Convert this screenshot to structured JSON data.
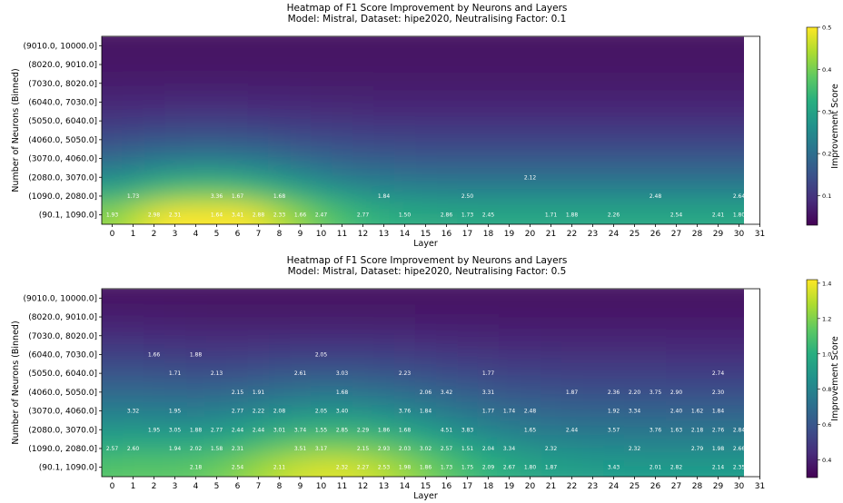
{
  "chart_data": [
    {
      "type": "heatmap",
      "title": "Heatmap of F1 Score Improvement by Neurons and Layers",
      "subtitle": "Model: Mistral, Dataset: hipe2020, Neutralising Factor: 0.1",
      "xlabel": "Layer",
      "ylabel": "Number of Neurons (Binned)",
      "colorbar_label": "Improvement Score",
      "colormap": "viridis",
      "x_ticks": [
        "0",
        "1",
        "2",
        "3",
        "4",
        "5",
        "6",
        "7",
        "8",
        "9",
        "10",
        "11",
        "12",
        "13",
        "14",
        "15",
        "16",
        "17",
        "18",
        "19",
        "20",
        "21",
        "22",
        "23",
        "24",
        "25",
        "26",
        "27",
        "28",
        "29",
        "30",
        "31"
      ],
      "y_bins": [
        "(9010.0, 10000.0]",
        "(8020.0, 9010.0]",
        "(7030.0, 8020.0]",
        "(6040.0, 7030.0]",
        "(5050.0, 6040.0]",
        "(4060.0, 5050.0]",
        "(3070.0, 4060.0]",
        "(2080.0, 3070.0]",
        "(1090.0, 2080.0]",
        "(90.1, 1090.0]"
      ],
      "colorbar_range": [
        0.03,
        0.5
      ],
      "colorbar_ticks": [
        "0.1",
        "0.2",
        "0.3",
        "0.4",
        "0.5"
      ],
      "cells": [
        {
          "bin": "(2080.0, 3070.0]",
          "layer": 20,
          "value": "2.12"
        },
        {
          "bin": "(1090.0, 2080.0]",
          "layer": 1,
          "value": "1.73"
        },
        {
          "bin": "(1090.0, 2080.0]",
          "layer": 5,
          "value": "3.36"
        },
        {
          "bin": "(1090.0, 2080.0]",
          "layer": 6,
          "value": "1.67"
        },
        {
          "bin": "(1090.0, 2080.0]",
          "layer": 8,
          "value": "1.68"
        },
        {
          "bin": "(1090.0, 2080.0]",
          "layer": 13,
          "value": "1.84"
        },
        {
          "bin": "(1090.0, 2080.0]",
          "layer": 17,
          "value": "2.50"
        },
        {
          "bin": "(1090.0, 2080.0]",
          "layer": 26,
          "value": "2.48"
        },
        {
          "bin": "(1090.0, 2080.0]",
          "layer": 30,
          "value": "2.64"
        },
        {
          "bin": "(90.1, 1090.0]",
          "layer": 0,
          "value": "1.93"
        },
        {
          "bin": "(90.1, 1090.0]",
          "layer": 2,
          "value": "2.98"
        },
        {
          "bin": "(90.1, 1090.0]",
          "layer": 3,
          "value": "2.31"
        },
        {
          "bin": "(90.1, 1090.0]",
          "layer": 5,
          "value": "1.64"
        },
        {
          "bin": "(90.1, 1090.0]",
          "layer": 6,
          "value": "3.41"
        },
        {
          "bin": "(90.1, 1090.0]",
          "layer": 7,
          "value": "2.88"
        },
        {
          "bin": "(90.1, 1090.0]",
          "layer": 8,
          "value": "2.33"
        },
        {
          "bin": "(90.1, 1090.0]",
          "layer": 9,
          "value": "1.66"
        },
        {
          "bin": "(90.1, 1090.0]",
          "layer": 10,
          "value": "2.47"
        },
        {
          "bin": "(90.1, 1090.0]",
          "layer": 12,
          "value": "2.77"
        },
        {
          "bin": "(90.1, 1090.0]",
          "layer": 14,
          "value": "1.50"
        },
        {
          "bin": "(90.1, 1090.0]",
          "layer": 16,
          "value": "2.86"
        },
        {
          "bin": "(90.1, 1090.0]",
          "layer": 17,
          "value": "1.73"
        },
        {
          "bin": "(90.1, 1090.0]",
          "layer": 18,
          "value": "2.45"
        },
        {
          "bin": "(90.1, 1090.0]",
          "layer": 21,
          "value": "1.71"
        },
        {
          "bin": "(90.1, 1090.0]",
          "layer": 22,
          "value": "1.88"
        },
        {
          "bin": "(90.1, 1090.0]",
          "layer": 24,
          "value": "2.26"
        },
        {
          "bin": "(90.1, 1090.0]",
          "layer": 27,
          "value": "2.54"
        },
        {
          "bin": "(90.1, 1090.0]",
          "layer": 29,
          "value": "2.41"
        },
        {
          "bin": "(90.1, 1090.0]",
          "layer": 30,
          "value": "1.80"
        }
      ],
      "grid": false
    },
    {
      "type": "heatmap",
      "title": "Heatmap of F1 Score Improvement by Neurons and Layers",
      "subtitle": "Model: Mistral, Dataset: hipe2020, Neutralising Factor: 0.5",
      "xlabel": "Layer",
      "ylabel": "Number of Neurons (Binned)",
      "colorbar_label": "Improvement Score",
      "colormap": "viridis",
      "x_ticks": [
        "0",
        "1",
        "2",
        "3",
        "4",
        "5",
        "6",
        "7",
        "8",
        "9",
        "10",
        "11",
        "12",
        "13",
        "14",
        "15",
        "16",
        "17",
        "18",
        "19",
        "20",
        "21",
        "22",
        "23",
        "24",
        "25",
        "26",
        "27",
        "28",
        "29",
        "30",
        "31"
      ],
      "y_bins": [
        "(9010.0, 10000.0]",
        "(8020.0, 9010.0]",
        "(7030.0, 8020.0]",
        "(6040.0, 7030.0]",
        "(5050.0, 6040.0]",
        "(4060.0, 5050.0]",
        "(3070.0, 4060.0]",
        "(2080.0, 3070.0]",
        "(1090.0, 2080.0]",
        "(90.1, 1090.0]"
      ],
      "colorbar_range": [
        0.3,
        1.42
      ],
      "colorbar_ticks": [
        "0.4",
        "0.6",
        "0.8",
        "1.0",
        "1.2",
        "1.4"
      ],
      "cells": [
        {
          "bin": "(6040.0, 7030.0]",
          "layer": 2,
          "value": "1.66"
        },
        {
          "bin": "(6040.0, 7030.0]",
          "layer": 4,
          "value": "1.88"
        },
        {
          "bin": "(6040.0, 7030.0]",
          "layer": 10,
          "value": "2.05"
        },
        {
          "bin": "(5050.0, 6040.0]",
          "layer": 3,
          "value": "1.71"
        },
        {
          "bin": "(5050.0, 6040.0]",
          "layer": 5,
          "value": "2.13"
        },
        {
          "bin": "(5050.0, 6040.0]",
          "layer": 9,
          "value": "2.61"
        },
        {
          "bin": "(5050.0, 6040.0]",
          "layer": 11,
          "value": "3.03"
        },
        {
          "bin": "(5050.0, 6040.0]",
          "layer": 14,
          "value": "2.23"
        },
        {
          "bin": "(5050.0, 6040.0]",
          "layer": 18,
          "value": "1.77"
        },
        {
          "bin": "(5050.0, 6040.0]",
          "layer": 29,
          "value": "2.74"
        },
        {
          "bin": "(4060.0, 5050.0]",
          "layer": 6,
          "value": "2.15"
        },
        {
          "bin": "(4060.0, 5050.0]",
          "layer": 7,
          "value": "1.91"
        },
        {
          "bin": "(4060.0, 5050.0]",
          "layer": 11,
          "value": "1.68"
        },
        {
          "bin": "(4060.0, 5050.0]",
          "layer": 15,
          "value": "2.06"
        },
        {
          "bin": "(4060.0, 5050.0]",
          "layer": 16,
          "value": "3.42"
        },
        {
          "bin": "(4060.0, 5050.0]",
          "layer": 18,
          "value": "3.31"
        },
        {
          "bin": "(4060.0, 5050.0]",
          "layer": 22,
          "value": "1.87"
        },
        {
          "bin": "(4060.0, 5050.0]",
          "layer": 24,
          "value": "2.36"
        },
        {
          "bin": "(4060.0, 5050.0]",
          "layer": 25,
          "value": "2.20"
        },
        {
          "bin": "(4060.0, 5050.0]",
          "layer": 26,
          "value": "3.75"
        },
        {
          "bin": "(4060.0, 5050.0]",
          "layer": 27,
          "value": "2.90"
        },
        {
          "bin": "(4060.0, 5050.0]",
          "layer": 29,
          "value": "2.30"
        },
        {
          "bin": "(3070.0, 4060.0]",
          "layer": 1,
          "value": "3.32"
        },
        {
          "bin": "(3070.0, 4060.0]",
          "layer": 3,
          "value": "1.95"
        },
        {
          "bin": "(3070.0, 4060.0]",
          "layer": 6,
          "value": "2.77"
        },
        {
          "bin": "(3070.0, 4060.0]",
          "layer": 7,
          "value": "2.22"
        },
        {
          "bin": "(3070.0, 4060.0]",
          "layer": 8,
          "value": "2.08"
        },
        {
          "bin": "(3070.0, 4060.0]",
          "layer": 10,
          "value": "2.05"
        },
        {
          "bin": "(3070.0, 4060.0]",
          "layer": 11,
          "value": "3.40"
        },
        {
          "bin": "(3070.0, 4060.0]",
          "layer": 14,
          "value": "3.76"
        },
        {
          "bin": "(3070.0, 4060.0]",
          "layer": 15,
          "value": "1.84"
        },
        {
          "bin": "(3070.0, 4060.0]",
          "layer": 18,
          "value": "1.77"
        },
        {
          "bin": "(3070.0, 4060.0]",
          "layer": 19,
          "value": "1.74"
        },
        {
          "bin": "(3070.0, 4060.0]",
          "layer": 20,
          "value": "2.48"
        },
        {
          "bin": "(3070.0, 4060.0]",
          "layer": 24,
          "value": "1.92"
        },
        {
          "bin": "(3070.0, 4060.0]",
          "layer": 25,
          "value": "3.34"
        },
        {
          "bin": "(3070.0, 4060.0]",
          "layer": 27,
          "value": "2.40"
        },
        {
          "bin": "(3070.0, 4060.0]",
          "layer": 28,
          "value": "1.62"
        },
        {
          "bin": "(3070.0, 4060.0]",
          "layer": 29,
          "value": "1.84"
        },
        {
          "bin": "(2080.0, 3070.0]",
          "layer": 2,
          "value": "1.95"
        },
        {
          "bin": "(2080.0, 3070.0]",
          "layer": 3,
          "value": "3.05"
        },
        {
          "bin": "(2080.0, 3070.0]",
          "layer": 4,
          "value": "1.88"
        },
        {
          "bin": "(2080.0, 3070.0]",
          "layer": 5,
          "value": "2.77"
        },
        {
          "bin": "(2080.0, 3070.0]",
          "layer": 6,
          "value": "2.44"
        },
        {
          "bin": "(2080.0, 3070.0]",
          "layer": 7,
          "value": "2.44"
        },
        {
          "bin": "(2080.0, 3070.0]",
          "layer": 8,
          "value": "3.01"
        },
        {
          "bin": "(2080.0, 3070.0]",
          "layer": 9,
          "value": "3.74"
        },
        {
          "bin": "(2080.0, 3070.0]",
          "layer": 10,
          "value": "1.55"
        },
        {
          "bin": "(2080.0, 3070.0]",
          "layer": 11,
          "value": "2.85"
        },
        {
          "bin": "(2080.0, 3070.0]",
          "layer": 12,
          "value": "2.29"
        },
        {
          "bin": "(2080.0, 3070.0]",
          "layer": 13,
          "value": "1.86"
        },
        {
          "bin": "(2080.0, 3070.0]",
          "layer": 14,
          "value": "1.68"
        },
        {
          "bin": "(2080.0, 3070.0]",
          "layer": 16,
          "value": "4.51"
        },
        {
          "bin": "(2080.0, 3070.0]",
          "layer": 17,
          "value": "3.83"
        },
        {
          "bin": "(2080.0, 3070.0]",
          "layer": 20,
          "value": "1.65"
        },
        {
          "bin": "(2080.0, 3070.0]",
          "layer": 22,
          "value": "2.44"
        },
        {
          "bin": "(2080.0, 3070.0]",
          "layer": 24,
          "value": "3.57"
        },
        {
          "bin": "(2080.0, 3070.0]",
          "layer": 26,
          "value": "3.76"
        },
        {
          "bin": "(2080.0, 3070.0]",
          "layer": 27,
          "value": "1.63"
        },
        {
          "bin": "(2080.0, 3070.0]",
          "layer": 28,
          "value": "2.18"
        },
        {
          "bin": "(2080.0, 3070.0]",
          "layer": 29,
          "value": "2.76"
        },
        {
          "bin": "(2080.0, 3070.0]",
          "layer": 30,
          "value": "2.84"
        },
        {
          "bin": "(1090.0, 2080.0]",
          "layer": 0,
          "value": "2.57"
        },
        {
          "bin": "(1090.0, 2080.0]",
          "layer": 1,
          "value": "2.60"
        },
        {
          "bin": "(1090.0, 2080.0]",
          "layer": 3,
          "value": "1.94"
        },
        {
          "bin": "(1090.0, 2080.0]",
          "layer": 4,
          "value": "2.02"
        },
        {
          "bin": "(1090.0, 2080.0]",
          "layer": 5,
          "value": "1.58"
        },
        {
          "bin": "(1090.0, 2080.0]",
          "layer": 6,
          "value": "2.31"
        },
        {
          "bin": "(1090.0, 2080.0]",
          "layer": 9,
          "value": "3.51"
        },
        {
          "bin": "(1090.0, 2080.0]",
          "layer": 10,
          "value": "3.17"
        },
        {
          "bin": "(1090.0, 2080.0]",
          "layer": 12,
          "value": "2.15"
        },
        {
          "bin": "(1090.0, 2080.0]",
          "layer": 13,
          "value": "2.93"
        },
        {
          "bin": "(1090.0, 2080.0]",
          "layer": 14,
          "value": "2.03"
        },
        {
          "bin": "(1090.0, 2080.0]",
          "layer": 15,
          "value": "3.02"
        },
        {
          "bin": "(1090.0, 2080.0]",
          "layer": 16,
          "value": "2.57"
        },
        {
          "bin": "(1090.0, 2080.0]",
          "layer": 17,
          "value": "1.51"
        },
        {
          "bin": "(1090.0, 2080.0]",
          "layer": 18,
          "value": "2.04"
        },
        {
          "bin": "(1090.0, 2080.0]",
          "layer": 19,
          "value": "3.34"
        },
        {
          "bin": "(1090.0, 2080.0]",
          "layer": 21,
          "value": "2.32"
        },
        {
          "bin": "(1090.0, 2080.0]",
          "layer": 25,
          "value": "2.32"
        },
        {
          "bin": "(1090.0, 2080.0]",
          "layer": 28,
          "value": "2.79"
        },
        {
          "bin": "(1090.0, 2080.0]",
          "layer": 29,
          "value": "1.98"
        },
        {
          "bin": "(1090.0, 2080.0]",
          "layer": 30,
          "value": "2.66"
        },
        {
          "bin": "(90.1, 1090.0]",
          "layer": 4,
          "value": "2.18"
        },
        {
          "bin": "(90.1, 1090.0]",
          "layer": 6,
          "value": "2.54"
        },
        {
          "bin": "(90.1, 1090.0]",
          "layer": 8,
          "value": "2.11"
        },
        {
          "bin": "(90.1, 1090.0]",
          "layer": 11,
          "value": "2.32"
        },
        {
          "bin": "(90.1, 1090.0]",
          "layer": 12,
          "value": "2.27"
        },
        {
          "bin": "(90.1, 1090.0]",
          "layer": 13,
          "value": "2.53"
        },
        {
          "bin": "(90.1, 1090.0]",
          "layer": 14,
          "value": "1.98"
        },
        {
          "bin": "(90.1, 1090.0]",
          "layer": 15,
          "value": "1.86"
        },
        {
          "bin": "(90.1, 1090.0]",
          "layer": 16,
          "value": "1.73"
        },
        {
          "bin": "(90.1, 1090.0]",
          "layer": 17,
          "value": "1.75"
        },
        {
          "bin": "(90.1, 1090.0]",
          "layer": 18,
          "value": "2.09"
        },
        {
          "bin": "(90.1, 1090.0]",
          "layer": 19,
          "value": "2.67"
        },
        {
          "bin": "(90.1, 1090.0]",
          "layer": 20,
          "value": "1.80"
        },
        {
          "bin": "(90.1, 1090.0]",
          "layer": 21,
          "value": "1.87"
        },
        {
          "bin": "(90.1, 1090.0]",
          "layer": 24,
          "value": "3.43"
        },
        {
          "bin": "(90.1, 1090.0]",
          "layer": 26,
          "value": "2.01"
        },
        {
          "bin": "(90.1, 1090.0]",
          "layer": 27,
          "value": "2.82"
        },
        {
          "bin": "(90.1, 1090.0]",
          "layer": 29,
          "value": "2.14"
        },
        {
          "bin": "(90.1, 1090.0]",
          "layer": 30,
          "value": "2.35"
        }
      ],
      "grid": false
    }
  ]
}
